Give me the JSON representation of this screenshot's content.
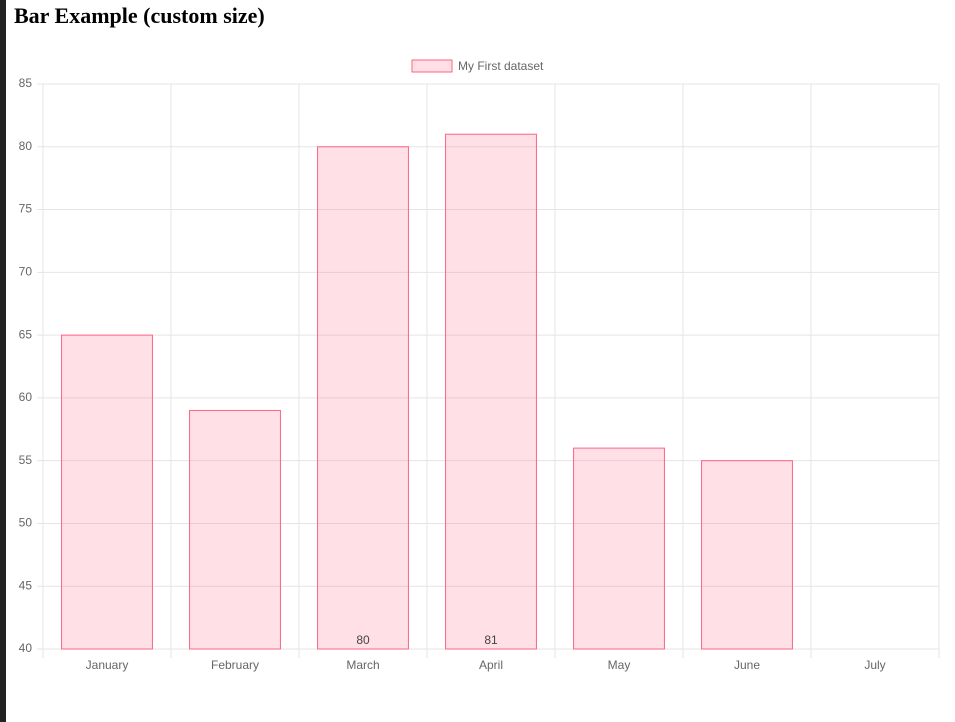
{
  "chart_data": {
    "type": "bar",
    "title": "Bar Example (custom size)",
    "categories": [
      "January",
      "February",
      "March",
      "April",
      "May",
      "June",
      "July"
    ],
    "series": [
      {
        "name": "My First dataset",
        "color": "#ff6384",
        "values": [
          65,
          59,
          80,
          81,
          56,
          55,
          40
        ],
        "value_labels": [
          null,
          null,
          "80",
          "81",
          null,
          null,
          null
        ]
      }
    ],
    "ylim": [
      40,
      85
    ],
    "yticks": [
      40,
      45,
      50,
      55,
      60,
      65,
      70,
      75,
      80,
      85
    ],
    "grid": true,
    "legend": "top"
  }
}
